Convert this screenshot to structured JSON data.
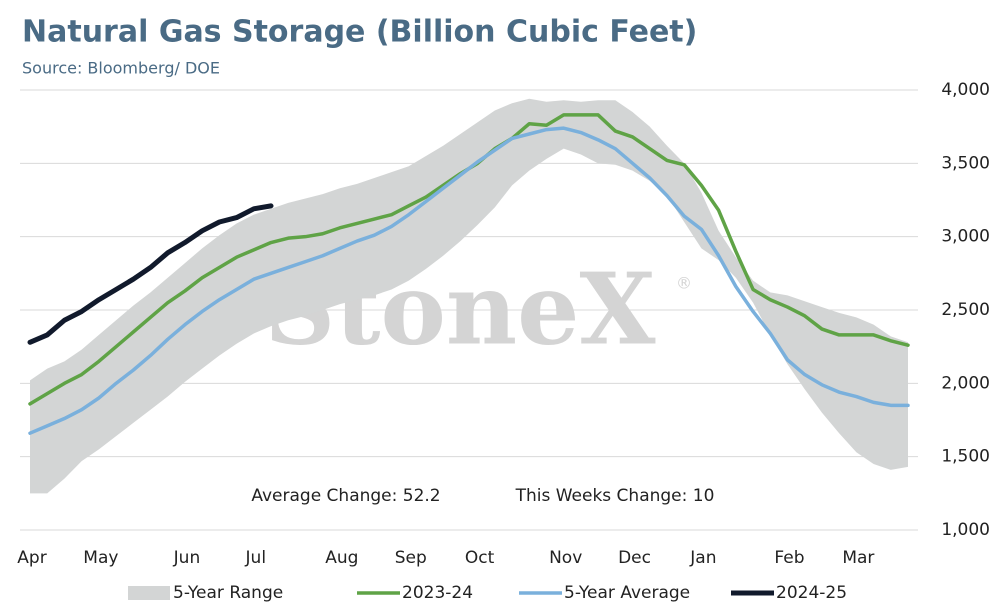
{
  "chart_data": {
    "type": "line",
    "title": "Natural Gas Storage (Billion Cubic Feet)",
    "subtitle": "Source: Bloomberg/ DOE",
    "watermark": "StoneX",
    "watermark_mark": "®",
    "annotations": [
      "Average Change: 52.2",
      "This Weeks Change: 10"
    ],
    "x": [
      0,
      1,
      2,
      3,
      4,
      5,
      6,
      7,
      8,
      9,
      10,
      11,
      12,
      13,
      14,
      15,
      16,
      17,
      18,
      19,
      20,
      21,
      22,
      23,
      24,
      25,
      26,
      27,
      28,
      29,
      30,
      31,
      32,
      33,
      34,
      35,
      36,
      37,
      38,
      39,
      40,
      41,
      42,
      43,
      44,
      45,
      46,
      47,
      48,
      49,
      50,
      51
    ],
    "xlim": [
      0,
      51
    ],
    "xticks": [
      {
        "value": 0,
        "label": "Apr"
      },
      {
        "value": 4,
        "label": "May"
      },
      {
        "value": 9,
        "label": "Jun"
      },
      {
        "value": 13,
        "label": "Jul"
      },
      {
        "value": 18,
        "label": "Aug"
      },
      {
        "value": 22,
        "label": "Sep"
      },
      {
        "value": 26,
        "label": "Oct"
      },
      {
        "value": 31,
        "label": "Nov"
      },
      {
        "value": 35,
        "label": "Dec"
      },
      {
        "value": 39,
        "label": "Jan"
      },
      {
        "value": 44,
        "label": "Feb"
      },
      {
        "value": 48,
        "label": "Mar"
      }
    ],
    "ylim": [
      1000,
      4000
    ],
    "yticks": [
      {
        "value": 1000,
        "label": "1,000"
      },
      {
        "value": 1500,
        "label": "1,500"
      },
      {
        "value": 2000,
        "label": "2,000"
      },
      {
        "value": 2500,
        "label": "2,500"
      },
      {
        "value": 3000,
        "label": "3,000"
      },
      {
        "value": 3500,
        "label": "3,500"
      },
      {
        "value": 4000,
        "label": "4,000"
      }
    ],
    "grid": true,
    "legend": "bottom",
    "series": [
      {
        "name": "5-Year Range",
        "color": "#d3d5d5",
        "kind": "band",
        "high": [
          2020,
          2100,
          2150,
          2230,
          2330,
          2430,
          2530,
          2620,
          2720,
          2820,
          2920,
          3010,
          3090,
          3150,
          3190,
          3230,
          3260,
          3290,
          3330,
          3360,
          3400,
          3440,
          3480,
          3550,
          3620,
          3700,
          3780,
          3860,
          3910,
          3940,
          3920,
          3930,
          3920,
          3930,
          3930,
          3850,
          3750,
          3620,
          3500,
          3300,
          3040,
          2860,
          2700,
          2620,
          2600,
          2560,
          2520,
          2480,
          2450,
          2400,
          2320,
          2280
        ],
        "low": [
          1250,
          1250,
          1350,
          1470,
          1550,
          1640,
          1730,
          1820,
          1910,
          2010,
          2100,
          2190,
          2270,
          2340,
          2390,
          2430,
          2460,
          2500,
          2540,
          2570,
          2600,
          2640,
          2700,
          2780,
          2870,
          2970,
          3080,
          3200,
          3350,
          3450,
          3530,
          3600,
          3560,
          3500,
          3490,
          3450,
          3380,
          3280,
          3100,
          2920,
          2840,
          2720,
          2550,
          2330,
          2130,
          1960,
          1800,
          1660,
          1530,
          1450,
          1410,
          1430
        ]
      },
      {
        "name": "2023-24",
        "color": "#5fa346",
        "values": [
          1860,
          1930,
          2000,
          2060,
          2150,
          2250,
          2350,
          2450,
          2550,
          2630,
          2720,
          2790,
          2860,
          2910,
          2960,
          2990,
          3000,
          3020,
          3060,
          3090,
          3120,
          3150,
          3210,
          3270,
          3350,
          3430,
          3500,
          3600,
          3670,
          3770,
          3760,
          3830,
          3830,
          3830,
          3720,
          3680,
          3600,
          3520,
          3490,
          3350,
          3180,
          2900,
          2640,
          2570,
          2520,
          2460,
          2370,
          2330,
          2330,
          2330,
          2290,
          2260
        ]
      },
      {
        "name": "5-Year Average",
        "color": "#7ab0dc",
        "values": [
          1660,
          1710,
          1760,
          1820,
          1900,
          2000,
          2090,
          2190,
          2300,
          2400,
          2490,
          2570,
          2640,
          2710,
          2750,
          2790,
          2830,
          2870,
          2920,
          2970,
          3010,
          3070,
          3150,
          3240,
          3330,
          3420,
          3510,
          3590,
          3670,
          3700,
          3730,
          3740,
          3710,
          3660,
          3600,
          3500,
          3400,
          3280,
          3140,
          3050,
          2870,
          2660,
          2490,
          2340,
          2160,
          2060,
          1990,
          1940,
          1910,
          1870,
          1850,
          1850
        ]
      },
      {
        "name": "2024-25",
        "color": "#111a2c",
        "values": [
          2280,
          2330,
          2430,
          2490,
          2570,
          2640,
          2710,
          2790,
          2890,
          2960,
          3040,
          3100,
          3130,
          3190,
          3210,
          null,
          null,
          null,
          null,
          null,
          null,
          null,
          null,
          null,
          null,
          null,
          null,
          null,
          null,
          null,
          null,
          null,
          null,
          null,
          null,
          null,
          null,
          null,
          null,
          null,
          null,
          null,
          null,
          null,
          null,
          null,
          null,
          null,
          null,
          null,
          null,
          null
        ]
      }
    ]
  }
}
